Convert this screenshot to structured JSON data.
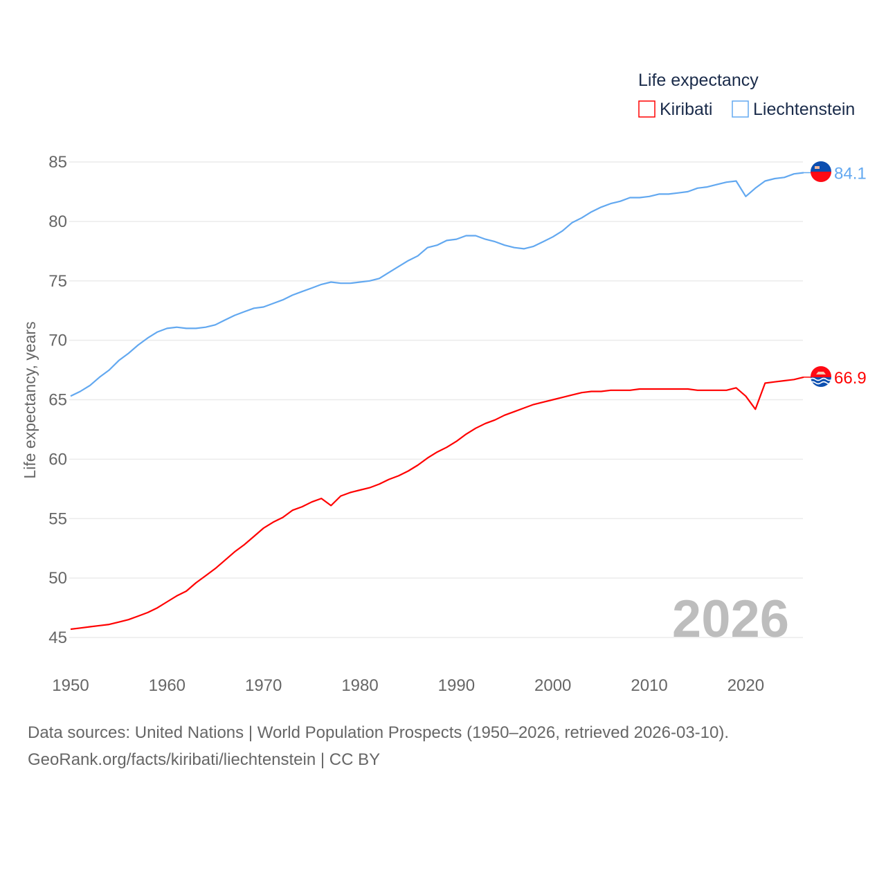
{
  "chart_data": {
    "type": "line",
    "legend_title": "Life expectancy",
    "ylabel": "Life expectancy, years",
    "xlabel": "",
    "ylim": [
      45,
      85
    ],
    "xlim": [
      1950,
      2026
    ],
    "yticks": [
      45,
      50,
      55,
      60,
      65,
      70,
      75,
      80,
      85
    ],
    "xticks": [
      1950,
      1960,
      1970,
      1980,
      1990,
      2000,
      2010,
      2020
    ],
    "grid": true,
    "legend_position": "top-right",
    "current_year_label": "2026",
    "x": [
      1950,
      1951,
      1952,
      1953,
      1954,
      1955,
      1956,
      1957,
      1958,
      1959,
      1960,
      1961,
      1962,
      1963,
      1964,
      1965,
      1966,
      1967,
      1968,
      1969,
      1970,
      1971,
      1972,
      1973,
      1974,
      1975,
      1976,
      1977,
      1978,
      1979,
      1980,
      1981,
      1982,
      1983,
      1984,
      1985,
      1986,
      1987,
      1988,
      1989,
      1990,
      1991,
      1992,
      1993,
      1994,
      1995,
      1996,
      1997,
      1998,
      1999,
      2000,
      2001,
      2002,
      2003,
      2004,
      2005,
      2006,
      2007,
      2008,
      2009,
      2010,
      2011,
      2012,
      2013,
      2014,
      2015,
      2016,
      2017,
      2018,
      2019,
      2020,
      2021,
      2022,
      2023,
      2024,
      2025,
      2026
    ],
    "series": [
      {
        "name": "Kiribati",
        "color": "#ff0000",
        "end_label": "66.9",
        "values": [
          45.7,
          45.8,
          45.9,
          46.0,
          46.1,
          46.3,
          46.5,
          46.8,
          47.1,
          47.5,
          48.0,
          48.5,
          48.9,
          49.6,
          50.2,
          50.8,
          51.5,
          52.2,
          52.8,
          53.5,
          54.2,
          54.7,
          55.1,
          55.7,
          56.0,
          56.4,
          56.7,
          56.1,
          56.9,
          57.2,
          57.4,
          57.6,
          57.9,
          58.3,
          58.6,
          59.0,
          59.5,
          60.1,
          60.6,
          61.0,
          61.5,
          62.1,
          62.6,
          63.0,
          63.3,
          63.7,
          64.0,
          64.3,
          64.6,
          64.8,
          65.0,
          65.2,
          65.4,
          65.6,
          65.7,
          65.7,
          65.8,
          65.8,
          65.8,
          65.9,
          65.9,
          65.9,
          65.9,
          65.9,
          65.9,
          65.8,
          65.8,
          65.8,
          65.8,
          66.0,
          65.3,
          64.2,
          66.4,
          66.5,
          66.6,
          66.7,
          66.9
        ]
      },
      {
        "name": "Liechtenstein",
        "color": "#62a8f0",
        "end_label": "84.1",
        "values": [
          65.3,
          65.7,
          66.2,
          66.9,
          67.5,
          68.3,
          68.9,
          69.6,
          70.2,
          70.7,
          71.0,
          71.1,
          71.0,
          71.0,
          71.1,
          71.3,
          71.7,
          72.1,
          72.4,
          72.7,
          72.8,
          73.1,
          73.4,
          73.8,
          74.1,
          74.4,
          74.7,
          74.9,
          74.8,
          74.8,
          74.9,
          75.0,
          75.2,
          75.7,
          76.2,
          76.7,
          77.1,
          77.8,
          78.0,
          78.4,
          78.5,
          78.8,
          78.8,
          78.5,
          78.3,
          78.0,
          77.8,
          77.7,
          77.9,
          78.3,
          78.7,
          79.2,
          79.9,
          80.3,
          80.8,
          81.2,
          81.5,
          81.7,
          82.0,
          82.0,
          82.1,
          82.3,
          82.3,
          82.4,
          82.5,
          82.8,
          82.9,
          83.1,
          83.3,
          83.4,
          82.1,
          82.8,
          83.4,
          83.6,
          83.7,
          84.0,
          84.1
        ]
      }
    ]
  },
  "footer": {
    "line1": "Data sources: United Nations | World Population Prospects (1950–2026, retrieved 2026-03-10).",
    "line2": "GeoRank.org/facts/kiribati/liechtenstein | CC BY"
  }
}
